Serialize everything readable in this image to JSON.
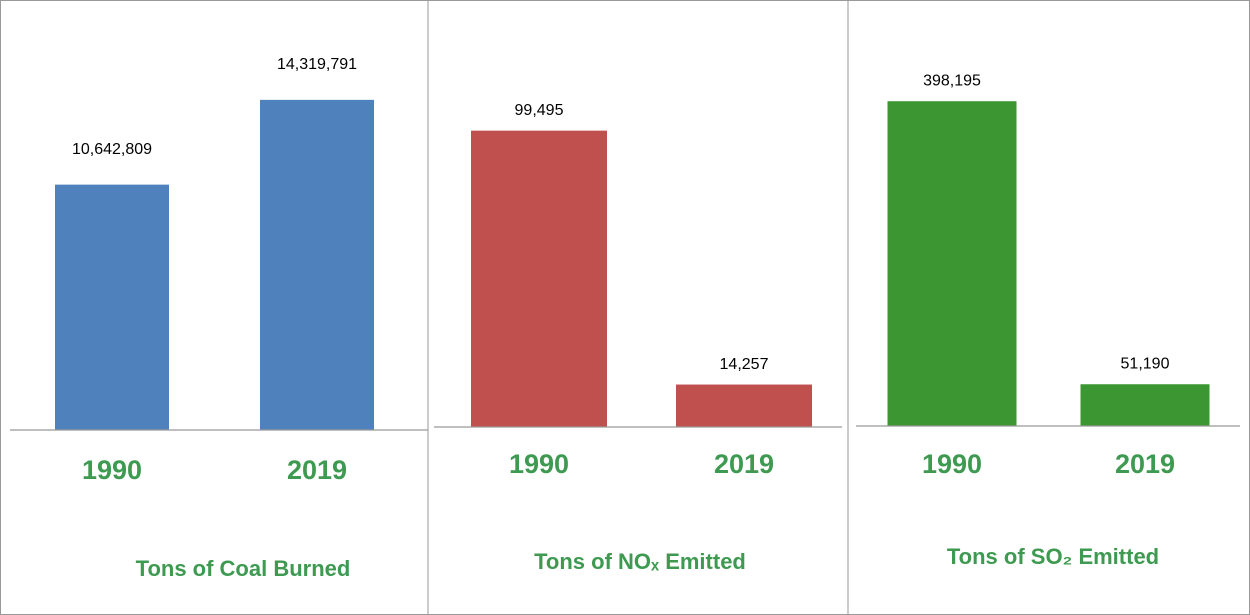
{
  "chart_data": [
    {
      "type": "bar",
      "title": "Tons of Coal Burned",
      "categories": [
        "1990",
        "2019"
      ],
      "values": [
        10642809,
        14319791
      ],
      "value_labels": [
        "10,642,809",
        "14,319,791"
      ],
      "color": "#4f81bd",
      "ylim": [
        0,
        18000000
      ]
    },
    {
      "type": "bar",
      "title": "Tons of NOₓ Emitted",
      "categories": [
        "1990",
        "2019"
      ],
      "values": [
        99495,
        14257
      ],
      "value_labels": [
        "99,495",
        "14,257"
      ],
      "color": "#c0504d",
      "ylim": [
        0,
        140000
      ]
    },
    {
      "type": "bar",
      "title": "Tons of SO₂ Emitted",
      "categories": [
        "1990",
        "2019"
      ],
      "values": [
        398195,
        51190
      ],
      "value_labels": [
        "398,195",
        "51,190"
      ],
      "color": "#3c9632",
      "ylim": [
        0,
        510000
      ]
    }
  ]
}
